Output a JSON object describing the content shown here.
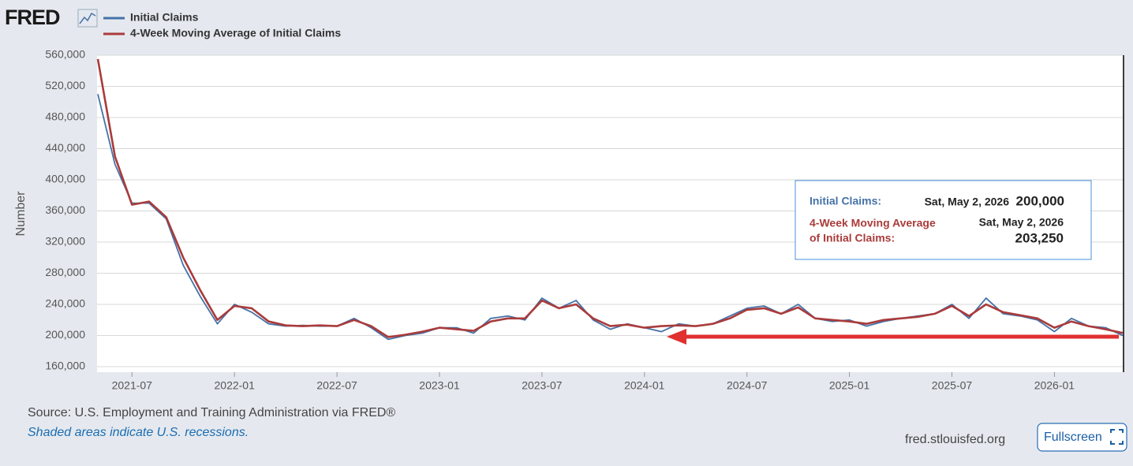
{
  "chart_data": {
    "type": "line",
    "logo": "FRED",
    "y_label": "Number",
    "categories": [
      null,
      null,
      "2021-07",
      null,
      null,
      null,
      null,
      null,
      "2022-01",
      null,
      null,
      null,
      null,
      null,
      "2022-07",
      null,
      null,
      null,
      null,
      null,
      "2023-01",
      null,
      null,
      null,
      null,
      null,
      "2023-07",
      null,
      null,
      null,
      null,
      null,
      "2024-01",
      null,
      null,
      null,
      null,
      null,
      "2024-07",
      null,
      null,
      null,
      null,
      null,
      "2025-01",
      null,
      null,
      null,
      null,
      null,
      "2025-07",
      null,
      null,
      null,
      null,
      null,
      "2026-01",
      null,
      null,
      null,
      null
    ],
    "series": [
      {
        "name": "Initial Claims",
        "color": "#4572a7",
        "values": [
          510000,
          420000,
          370000,
          370000,
          350000,
          290000,
          250000,
          215000,
          240000,
          230000,
          215000,
          212000,
          213000,
          212000,
          212000,
          222000,
          210000,
          195000,
          200000,
          203000,
          210000,
          210000,
          203000,
          222000,
          225000,
          220000,
          248000,
          235000,
          245000,
          220000,
          208000,
          215000,
          210000,
          205000,
          215000,
          212000,
          215000,
          225000,
          235000,
          238000,
          228000,
          240000,
          222000,
          218000,
          220000,
          212000,
          218000,
          222000,
          225000,
          228000,
          240000,
          222000,
          248000,
          228000,
          225000,
          220000,
          205000,
          222000,
          212000,
          210000,
          200000
        ]
      },
      {
        "name": "4-Week Moving Average of Initial Claims",
        "color": "#aa3b3b",
        "values": [
          555000,
          430000,
          368000,
          372000,
          352000,
          300000,
          258000,
          220000,
          238000,
          235000,
          218000,
          213000,
          212000,
          213000,
          212000,
          220000,
          212000,
          198000,
          201000,
          205000,
          210000,
          208000,
          206000,
          218000,
          222000,
          222000,
          245000,
          235000,
          240000,
          222000,
          212000,
          214000,
          210000,
          212000,
          213000,
          212000,
          215000,
          222000,
          233000,
          235000,
          228000,
          236000,
          222000,
          220000,
          218000,
          215000,
          220000,
          222000,
          224000,
          228000,
          238000,
          225000,
          240000,
          230000,
          226000,
          222000,
          210000,
          218000,
          212000,
          208000,
          203250
        ]
      }
    ],
    "ylim": [
      160000,
      560000
    ],
    "yticks": [
      {
        "value": 160000,
        "label": "160,000"
      },
      {
        "value": 200000,
        "label": "200,000"
      },
      {
        "value": 240000,
        "label": "240,000"
      },
      {
        "value": 280000,
        "label": "280,000"
      },
      {
        "value": 320000,
        "label": "320,000"
      },
      {
        "value": 360000,
        "label": "360,000"
      },
      {
        "value": 400000,
        "label": "400,000"
      },
      {
        "value": 440000,
        "label": "440,000"
      },
      {
        "value": 480000,
        "label": "480,000"
      },
      {
        "value": 520000,
        "label": "520,000"
      },
      {
        "value": 560000,
        "label": "560,000"
      }
    ],
    "grid": true,
    "tooltip": [
      {
        "name": "Initial Claims:",
        "date": "Sat, May 2, 2026",
        "value": "200,000"
      },
      {
        "name_lines": [
          "4-Week Moving Average",
          "of Initial Claims:"
        ],
        "date": "Sat, May 2, 2026",
        "value": "203,250"
      }
    ],
    "source": "Source: U.S. Employment and Training Administration via FRED®",
    "note": "Shaded areas indicate U.S. recessions.",
    "site": "fred.stlouisfed.org",
    "button": "Fullscreen"
  }
}
